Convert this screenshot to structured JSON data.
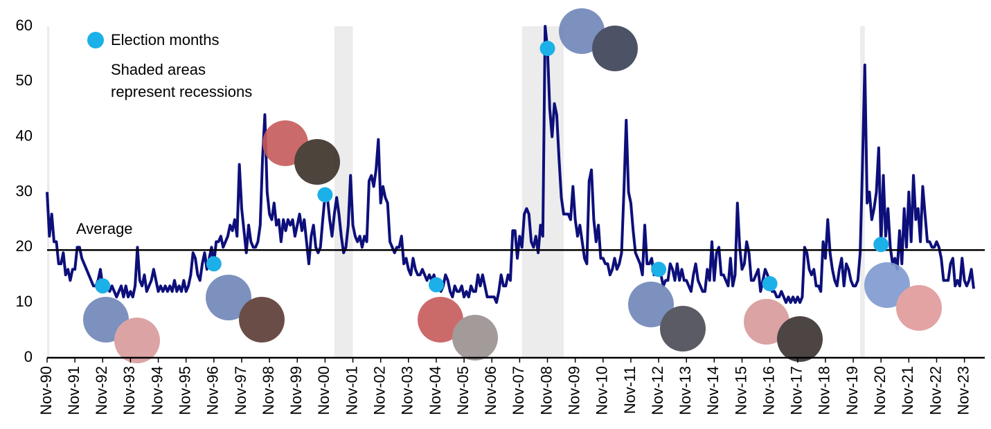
{
  "chart_data": {
    "type": "line",
    "legend_label": "Election months",
    "annotation": "Shaded areas",
    "annotation_line2": "represent recessions",
    "average_label": "Average",
    "average": 19.5,
    "ylim": [
      0,
      60
    ],
    "yticks": [
      0,
      10,
      20,
      30,
      40,
      50,
      60
    ],
    "grid": false,
    "recessions": [
      [
        -4,
        1
      ],
      [
        124,
        132
      ],
      [
        205,
        223
      ],
      [
        351,
        353
      ]
    ],
    "recession_color": "#ececec",
    "categories": [
      "Nov-90",
      null,
      null,
      null,
      null,
      null,
      null,
      null,
      null,
      null,
      null,
      null,
      "Nov-91",
      null,
      null,
      null,
      null,
      null,
      null,
      null,
      null,
      null,
      null,
      null,
      "Nov-92",
      null,
      null,
      null,
      null,
      null,
      null,
      null,
      null,
      null,
      null,
      null,
      "Nov-93",
      null,
      null,
      null,
      null,
      null,
      null,
      null,
      null,
      null,
      null,
      null,
      "Nov-94",
      null,
      null,
      null,
      null,
      null,
      null,
      null,
      null,
      null,
      null,
      null,
      "Nov-95",
      null,
      null,
      null,
      null,
      null,
      null,
      null,
      null,
      null,
      null,
      null,
      "Nov-96",
      null,
      null,
      null,
      null,
      null,
      null,
      null,
      null,
      null,
      null,
      null,
      "Nov-97",
      null,
      null,
      null,
      null,
      null,
      null,
      null,
      null,
      null,
      null,
      null,
      "Nov-98",
      null,
      null,
      null,
      null,
      null,
      null,
      null,
      null,
      null,
      null,
      null,
      "Nov-99",
      null,
      null,
      null,
      null,
      null,
      null,
      null,
      null,
      null,
      null,
      null,
      "Nov-00",
      null,
      null,
      null,
      null,
      null,
      null,
      null,
      null,
      null,
      null,
      null,
      "Nov-01",
      null,
      null,
      null,
      null,
      null,
      null,
      null,
      null,
      null,
      null,
      null,
      "Nov-02",
      null,
      null,
      null,
      null,
      null,
      null,
      null,
      null,
      null,
      null,
      null,
      "Nov-03",
      null,
      null,
      null,
      null,
      null,
      null,
      null,
      null,
      null,
      null,
      null,
      "Nov-04",
      null,
      null,
      null,
      null,
      null,
      null,
      null,
      null,
      null,
      null,
      null,
      "Nov-05",
      null,
      null,
      null,
      null,
      null,
      null,
      null,
      null,
      null,
      null,
      null,
      "Nov-06",
      null,
      null,
      null,
      null,
      null,
      null,
      null,
      null,
      null,
      null,
      null,
      "Nov-07",
      null,
      null,
      null,
      null,
      null,
      null,
      null,
      null,
      null,
      null,
      null,
      "Nov-08",
      null,
      null,
      null,
      null,
      null,
      null,
      null,
      null,
      null,
      null,
      null,
      "Nov-09",
      null,
      null,
      null,
      null,
      null,
      null,
      null,
      null,
      null,
      null,
      null,
      "Nov-10",
      null,
      null,
      null,
      null,
      null,
      null,
      null,
      null,
      null,
      null,
      null,
      "Nov-11",
      null,
      null,
      null,
      null,
      null,
      null,
      null,
      null,
      null,
      null,
      null,
      "Nov-12",
      null,
      null,
      null,
      null,
      null,
      null,
      null,
      null,
      null,
      null,
      null,
      "Nov-13",
      null,
      null,
      null,
      null,
      null,
      null,
      null,
      null,
      null,
      null,
      null,
      "Nov-14",
      null,
      null,
      null,
      null,
      null,
      null,
      null,
      null,
      null,
      null,
      null,
      "Nov-15",
      null,
      null,
      null,
      null,
      null,
      null,
      null,
      null,
      null,
      null,
      null,
      "Nov-16",
      null,
      null,
      null,
      null,
      null,
      null,
      null,
      null,
      null,
      null,
      null,
      "Nov-17",
      null,
      null,
      null,
      null,
      null,
      null,
      null,
      null,
      null,
      null,
      null,
      "Nov-18",
      null,
      null,
      null,
      null,
      null,
      null,
      null,
      null,
      null,
      null,
      null,
      "Nov-19",
      null,
      null,
      null,
      null,
      null,
      null,
      null,
      null,
      null,
      null,
      null,
      "Nov-20",
      null,
      null,
      null,
      null,
      null,
      null,
      null,
      null,
      null,
      null,
      null,
      "Nov-21",
      null,
      null,
      null,
      null,
      null,
      null,
      null,
      null,
      null,
      null,
      null,
      "Nov-22",
      null,
      null,
      null,
      null,
      null,
      null,
      null,
      null,
      null,
      null,
      null,
      "Nov-23",
      null,
      null,
      null,
      null
    ],
    "series": [
      {
        "color": "#0d0f7a",
        "values": [
          30,
          22,
          26,
          21,
          21,
          17,
          17,
          19,
          15,
          16,
          14,
          16,
          16,
          20,
          20,
          18,
          17,
          16,
          15,
          14,
          13,
          13,
          14,
          16,
          13,
          12,
          13,
          12,
          13,
          12,
          11,
          12,
          13,
          11,
          13,
          11,
          12,
          11,
          13,
          20,
          14,
          13,
          15,
          12,
          13,
          14,
          16,
          14,
          12,
          13,
          12,
          13,
          12,
          13,
          12,
          14,
          12,
          13,
          12,
          14,
          12,
          13,
          15,
          19,
          18,
          15,
          14,
          17,
          19,
          16,
          18,
          20,
          17,
          21,
          21,
          22,
          20,
          21,
          22,
          24,
          23,
          25,
          22,
          35,
          27,
          23,
          19,
          24,
          21,
          20,
          20,
          21,
          24,
          36,
          44,
          30,
          26,
          25,
          28,
          24,
          25,
          21,
          25,
          23,
          25,
          24,
          25,
          22,
          24,
          26,
          23,
          25,
          21,
          17,
          22,
          24,
          20,
          19,
          20,
          25,
          29.5,
          29,
          25,
          22,
          26,
          29,
          26,
          22,
          19,
          20,
          24,
          33,
          24,
          22,
          21,
          22,
          20,
          22,
          21,
          32,
          33,
          31,
          34,
          39.5,
          28,
          31,
          29,
          28,
          21,
          20,
          19,
          20,
          20,
          22,
          17,
          18,
          16,
          15,
          18,
          16,
          15,
          15,
          16,
          15,
          14,
          15,
          14,
          15,
          13.2,
          13,
          12,
          13,
          15,
          14,
          12,
          11,
          13,
          12,
          12,
          13,
          11,
          12,
          11,
          13,
          12,
          12,
          15,
          13,
          15,
          13,
          11,
          11,
          11,
          11,
          10,
          12,
          15,
          13,
          13,
          15,
          14,
          23,
          23,
          18,
          22,
          20,
          26,
          27,
          26,
          21,
          20,
          22,
          19,
          24,
          22,
          60,
          56,
          45,
          40,
          46,
          44,
          36,
          29,
          26,
          26,
          26,
          25,
          31,
          25,
          22,
          24,
          21,
          18,
          17,
          32,
          34,
          25,
          21,
          24,
          18,
          18,
          17,
          17,
          15,
          16,
          18,
          16,
          17,
          19,
          30,
          43,
          30,
          28,
          23,
          19,
          18,
          17,
          15,
          24,
          17,
          17,
          18,
          15,
          16,
          16,
          15,
          13,
          14,
          14,
          17,
          16,
          14,
          17,
          14,
          16,
          14,
          14,
          13,
          12,
          15,
          17,
          14,
          13,
          12,
          12,
          16,
          14,
          21,
          14,
          19,
          20,
          15,
          15,
          14,
          13,
          18,
          13,
          15,
          28,
          20,
          16,
          17,
          21,
          19,
          14,
          14,
          15,
          16,
          12,
          14,
          16,
          15,
          13.4,
          12,
          12,
          11,
          11,
          12,
          11,
          10,
          11,
          10,
          11,
          10,
          11,
          10,
          11,
          20,
          19,
          16,
          15,
          16,
          13,
          13,
          12,
          21,
          18,
          25,
          19,
          16,
          14,
          13,
          16,
          18,
          13,
          17,
          16,
          14,
          13,
          13,
          14,
          19,
          35,
          53,
          28,
          30,
          25,
          27,
          30,
          38,
          20.5,
          33,
          22,
          27,
          20,
          17,
          18,
          16,
          23,
          17,
          27,
          20,
          30,
          21,
          33,
          25,
          27,
          21,
          31,
          26,
          21,
          21,
          20,
          20,
          21,
          20,
          18,
          14,
          14,
          14,
          17,
          18,
          13,
          14,
          13,
          18,
          14,
          13,
          14,
          16,
          12.5
        ]
      }
    ],
    "elections": {
      "color": "#1cb0e8",
      "x": [
        "Nov-92",
        "Nov-96",
        "Nov-00",
        "Nov-04",
        "Nov-08",
        "Nov-12",
        "Nov-16",
        "Nov-20"
      ],
      "values": [
        13,
        17,
        29.5,
        13.2,
        56,
        16,
        13.4,
        20.5
      ]
    }
  }
}
